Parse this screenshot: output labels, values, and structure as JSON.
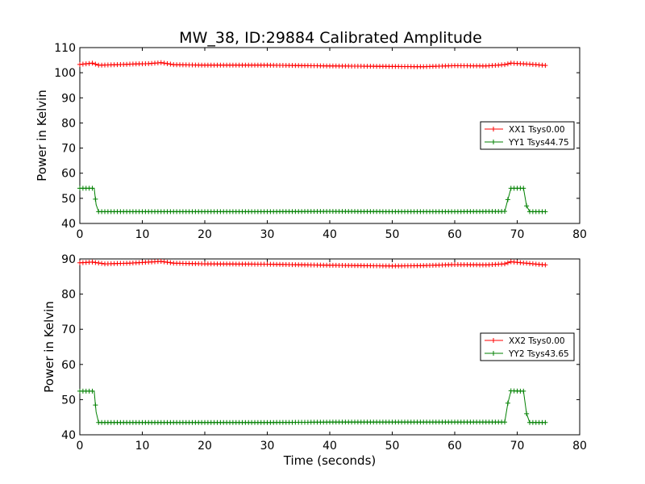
{
  "figure": {
    "title": "MW_38, ID:29884 Calibrated Amplitude"
  },
  "chart_data": [
    {
      "type": "line",
      "title": "MW_38, ID:29884 Calibrated Amplitude",
      "xlabel": "",
      "ylabel": "Power in Kelvin",
      "xlim": [
        0,
        80
      ],
      "ylim": [
        40,
        110
      ],
      "xticks": [
        0,
        10,
        20,
        30,
        40,
        50,
        60,
        70,
        80
      ],
      "yticks": [
        40,
        50,
        60,
        70,
        80,
        90,
        100,
        110
      ],
      "grid": false,
      "legend_position": "right",
      "marker": "+",
      "series": [
        {
          "name": "XX1 Tsys0.00",
          "color": "#ff0000",
          "points": [
            [
              0,
              103.3
            ],
            [
              2,
              103.8
            ],
            [
              3,
              103.0
            ],
            [
              6,
              103.2
            ],
            [
              9,
              103.5
            ],
            [
              11,
              103.6
            ],
            [
              13,
              104.0
            ],
            [
              15,
              103.2
            ],
            [
              20,
              103.0
            ],
            [
              30,
              103.0
            ],
            [
              40,
              102.7
            ],
            [
              50,
              102.5
            ],
            [
              55,
              102.4
            ],
            [
              60,
              102.8
            ],
            [
              65,
              102.7
            ],
            [
              68,
              103.2
            ],
            [
              69,
              103.8
            ],
            [
              72,
              103.4
            ],
            [
              74.5,
              102.9
            ]
          ]
        },
        {
          "name": "YY1 Tsys44.75",
          "color": "#008000",
          "points": [
            [
              0,
              54.0
            ],
            [
              2.3,
              54.0
            ],
            [
              2.6,
              47.5
            ],
            [
              3.0,
              44.7
            ],
            [
              10,
              44.7
            ],
            [
              20,
              44.7
            ],
            [
              30,
              44.7
            ],
            [
              40,
              44.8
            ],
            [
              50,
              44.7
            ],
            [
              60,
              44.7
            ],
            [
              68.0,
              44.8
            ],
            [
              68.5,
              49.5
            ],
            [
              69.0,
              54.0
            ],
            [
              71.0,
              54.0
            ],
            [
              71.5,
              47.0
            ],
            [
              72.0,
              44.7
            ],
            [
              74.5,
              44.7
            ]
          ]
        }
      ]
    },
    {
      "type": "line",
      "title": "",
      "xlabel": "Time (seconds)",
      "ylabel": "Power in Kelvin",
      "xlim": [
        0,
        80
      ],
      "ylim": [
        40,
        90
      ],
      "xticks": [
        0,
        10,
        20,
        30,
        40,
        50,
        60,
        70,
        80
      ],
      "yticks": [
        40,
        50,
        60,
        70,
        80,
        90
      ],
      "grid": false,
      "legend_position": "right",
      "marker": "+",
      "series": [
        {
          "name": "XX2 Tsys0.00",
          "color": "#ff0000",
          "points": [
            [
              0,
              88.9
            ],
            [
              2,
              89.1
            ],
            [
              4,
              88.6
            ],
            [
              8,
              88.8
            ],
            [
              10,
              89.0
            ],
            [
              13,
              89.3
            ],
            [
              15,
              88.8
            ],
            [
              20,
              88.6
            ],
            [
              30,
              88.5
            ],
            [
              40,
              88.2
            ],
            [
              50,
              88.0
            ],
            [
              55,
              88.1
            ],
            [
              60,
              88.4
            ],
            [
              65,
              88.3
            ],
            [
              68,
              88.6
            ],
            [
              69,
              89.2
            ],
            [
              72,
              88.7
            ],
            [
              74.5,
              88.3
            ]
          ]
        },
        {
          "name": "YY2 Tsys43.65",
          "color": "#008000",
          "points": [
            [
              0,
              52.4
            ],
            [
              2.3,
              52.4
            ],
            [
              2.6,
              46.5
            ],
            [
              3.0,
              43.5
            ],
            [
              10,
              43.5
            ],
            [
              20,
              43.5
            ],
            [
              30,
              43.5
            ],
            [
              40,
              43.6
            ],
            [
              50,
              43.6
            ],
            [
              60,
              43.6
            ],
            [
              68.0,
              43.6
            ],
            [
              68.5,
              49.0
            ],
            [
              69.0,
              52.5
            ],
            [
              71.0,
              52.4
            ],
            [
              71.5,
              46.0
            ],
            [
              72.0,
              43.5
            ],
            [
              74.5,
              43.5
            ]
          ]
        }
      ]
    }
  ]
}
